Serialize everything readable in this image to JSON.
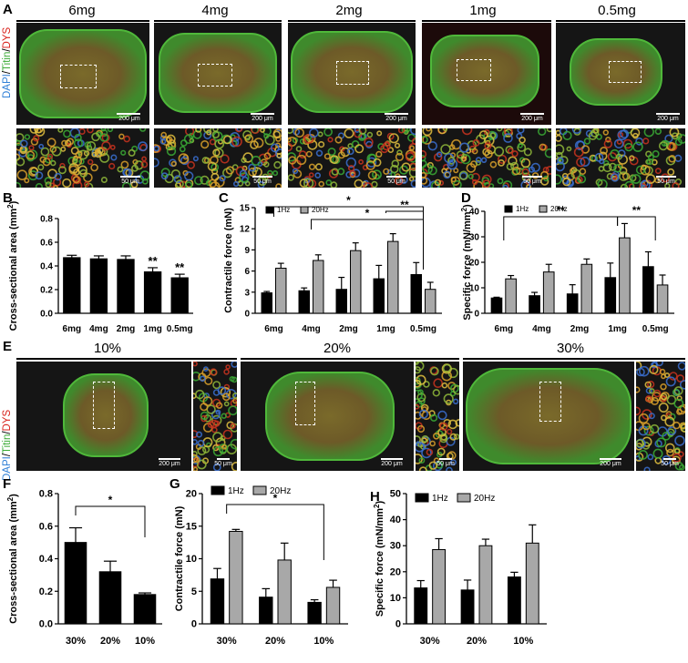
{
  "panel_a": {
    "letter": "A",
    "stain": {
      "dapi": "DAPI",
      "sep1": "/",
      "titin": "Titin",
      "sep2": "/",
      "dys": "DYS"
    },
    "doses": [
      "6mg",
      "4mg",
      "2mg",
      "1mg",
      "0.5mg"
    ],
    "scale_overview": "200 μm",
    "scale_zoom": "50 μm"
  },
  "panel_e": {
    "letter": "E",
    "stain": {
      "dapi": "DAPI",
      "sep1": "/",
      "titin": "Titin",
      "sep2": "/",
      "dys": "DYS"
    },
    "conditions": [
      "10%",
      "20%",
      "30%"
    ],
    "scale_overview": "200 μm",
    "scale_zoom": "50 μm"
  },
  "colors": {
    "bar_black": "#000000",
    "bar_gray": "#a8a8a8",
    "dapi": "#2f7fd6",
    "titin": "#3aaa35",
    "dys": "#d9221c"
  },
  "chart_data": [
    {
      "panel": "B",
      "type": "bar",
      "ylabel_main": "Cross-sectional area (mm",
      "ylabel_sup": "2",
      "ylabel_end": ")",
      "categories": [
        "6mg",
        "4mg",
        "2mg",
        "1mg",
        "0.5mg"
      ],
      "ylim": [
        0,
        0.8
      ],
      "yticks": [
        "0.0",
        "0.2",
        "0.4",
        "0.6",
        "0.8"
      ],
      "series": [
        {
          "values": [
            0.47,
            0.46,
            0.455,
            0.35,
            0.3
          ],
          "errors": [
            0.02,
            0.025,
            0.03,
            0.035,
            0.03
          ]
        }
      ],
      "annotations": [
        {
          "category": "1mg",
          "text": "**"
        },
        {
          "category": "0.5mg",
          "text": "**"
        }
      ]
    },
    {
      "panel": "C",
      "type": "bar",
      "ylabel": "Contractile force (mN)",
      "categories": [
        "6mg",
        "4mg",
        "2mg",
        "1mg",
        "0.5mg"
      ],
      "ylim": [
        0,
        15
      ],
      "yticks": [
        "0",
        "3",
        "6",
        "9",
        "12",
        "15"
      ],
      "series": [
        {
          "name": "1Hz",
          "values": [
            2.9,
            3.2,
            3.4,
            4.9,
            5.5
          ],
          "errors": [
            0.2,
            0.4,
            1.7,
            1.9,
            1.7
          ]
        },
        {
          "name": "20Hz",
          "values": [
            6.4,
            7.5,
            8.9,
            10.2,
            3.4
          ],
          "errors": [
            0.7,
            0.8,
            1.1,
            1.1,
            1.0
          ]
        }
      ],
      "brackets": [
        {
          "from": "6mg",
          "to": "0.5mg",
          "text": "*"
        },
        {
          "from": "4mg",
          "to": "0.5mg",
          "text": "*"
        },
        {
          "from": "1mg",
          "to": "0.5mg",
          "text": "**"
        }
      ]
    },
    {
      "panel": "D",
      "type": "bar",
      "ylabel_main": "Specific force (mN/mm",
      "ylabel_sup": "2",
      "ylabel_end": ")",
      "categories": [
        "6mg",
        "4mg",
        "2mg",
        "1mg",
        "0.5mg"
      ],
      "ylim": [
        0,
        40
      ],
      "yticks": [
        "0",
        "10",
        "20",
        "30",
        "40"
      ],
      "series": [
        {
          "name": "1Hz",
          "values": [
            6.0,
            6.9,
            7.6,
            14.0,
            18.3
          ],
          "errors": [
            0.3,
            1.3,
            3.6,
            5.7,
            5.8
          ]
        },
        {
          "name": "20Hz",
          "values": [
            13.5,
            16.2,
            19.2,
            29.6,
            11.1
          ],
          "errors": [
            1.3,
            3.0,
            2.1,
            5.6,
            3.9
          ]
        }
      ],
      "brackets": [
        {
          "from": "6mg",
          "to": "1mg",
          "text": "**"
        },
        {
          "from": "1mg",
          "to": "0.5mg",
          "text": "**"
        }
      ]
    },
    {
      "panel": "F",
      "type": "bar",
      "ylabel_main": "Cross-sectional area (mm",
      "ylabel_sup": "2",
      "ylabel_end": ")",
      "categories": [
        "30%",
        "20%",
        "10%"
      ],
      "ylim": [
        0,
        0.8
      ],
      "yticks": [
        "0.0",
        "0.2",
        "0.4",
        "0.6",
        "0.8"
      ],
      "series": [
        {
          "values": [
            0.5,
            0.32,
            0.18
          ],
          "errors": [
            0.09,
            0.065,
            0.01
          ]
        }
      ],
      "brackets": [
        {
          "from": "30%",
          "to": "10%",
          "text": "*"
        }
      ]
    },
    {
      "panel": "G",
      "type": "bar",
      "ylabel": "Contractile force (mN)",
      "categories": [
        "30%",
        "20%",
        "10%"
      ],
      "ylim": [
        0,
        20
      ],
      "yticks": [
        "0",
        "5",
        "10",
        "15",
        "20"
      ],
      "series": [
        {
          "name": "1Hz",
          "values": [
            6.9,
            4.1,
            3.3
          ],
          "errors": [
            1.6,
            1.3,
            0.4
          ]
        },
        {
          "name": "20Hz",
          "values": [
            14.2,
            9.8,
            5.6
          ],
          "errors": [
            0.3,
            2.6,
            1.1
          ]
        }
      ],
      "brackets": [
        {
          "from": "30%",
          "to": "10%",
          "text": "*"
        }
      ]
    },
    {
      "panel": "H",
      "type": "bar",
      "ylabel_main": "Specific force (mN/mm",
      "ylabel_sup": "2",
      "ylabel_end": ")",
      "categories": [
        "30%",
        "20%",
        "10%"
      ],
      "ylim": [
        0,
        50
      ],
      "yticks": [
        "0",
        "10",
        "20",
        "30",
        "40",
        "50"
      ],
      "series": [
        {
          "name": "1Hz",
          "values": [
            13.8,
            13.0,
            18.0
          ],
          "errors": [
            2.8,
            3.8,
            1.8
          ]
        },
        {
          "name": "20Hz",
          "values": [
            28.5,
            30.0,
            31.0
          ],
          "errors": [
            4.2,
            2.5,
            7.0
          ]
        }
      ]
    }
  ]
}
